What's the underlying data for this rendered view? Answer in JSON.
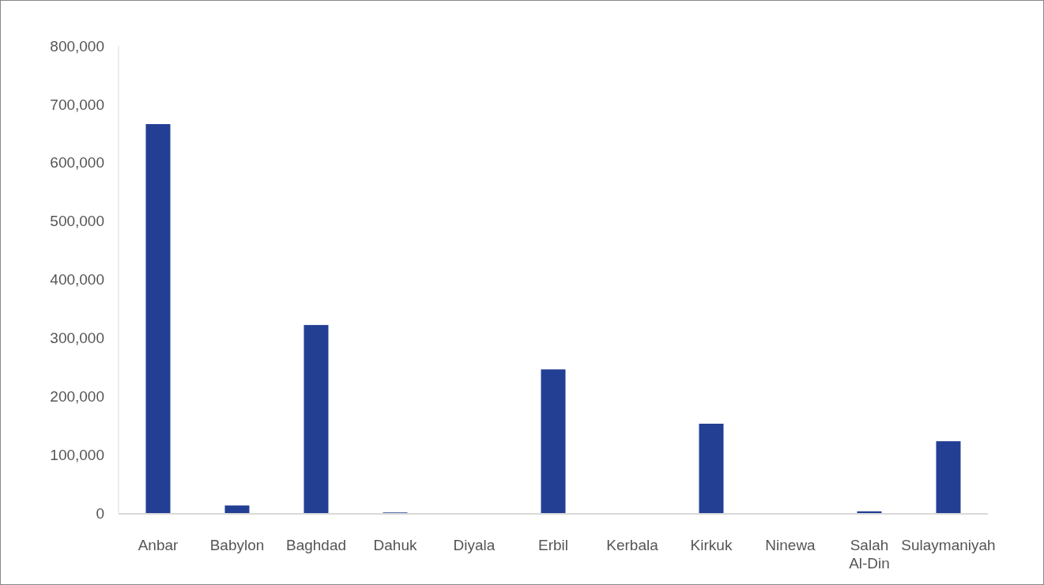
{
  "chart_data": {
    "type": "bar",
    "categories": [
      "Anbar",
      "Babylon",
      "Baghdad",
      "Dahuk",
      "Diyala",
      "Erbil",
      "Kerbala",
      "Kirkuk",
      "Ninewa",
      "Salah Al-Din",
      "Sulaymaniyah"
    ],
    "values": [
      666000,
      13000,
      322000,
      1000,
      0,
      246000,
      0,
      153000,
      0,
      3000,
      123000
    ],
    "color": "#233f94",
    "ylim": [
      0,
      800000
    ],
    "yticks": [
      {
        "value": 0,
        "label": "0"
      },
      {
        "value": 100000,
        "label": "100,000"
      },
      {
        "value": 200000,
        "label": "200,000"
      },
      {
        "value": 300000,
        "label": "300,000"
      },
      {
        "value": 400000,
        "label": "400,000"
      },
      {
        "value": 500000,
        "label": "500,000"
      },
      {
        "value": 600000,
        "label": "600,000"
      },
      {
        "value": 700000,
        "label": "700,000"
      },
      {
        "value": 800000,
        "label": "800,000"
      }
    ],
    "grid": false
  }
}
